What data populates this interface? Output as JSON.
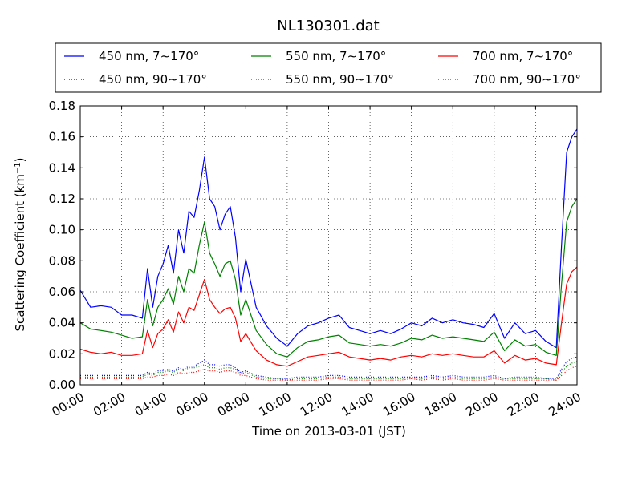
{
  "chart_data": {
    "type": "line",
    "title": "NL130301.dat",
    "xlabel": "Time on 2013-03-01 (JST)",
    "ylabel": "Scattering Coefficient (km",
    "ylabel_exponent": "−1",
    "ylabel_suffix": ")",
    "xlim": [
      0,
      24
    ],
    "ylim": [
      0,
      0.18
    ],
    "grid": true,
    "legend": "top-outside",
    "x_ticks": [
      0,
      2,
      4,
      6,
      8,
      10,
      12,
      14,
      16,
      18,
      20,
      22,
      24
    ],
    "x_tick_labels": [
      "00:00",
      "02:00",
      "04:00",
      "06:00",
      "08:00",
      "10:00",
      "12:00",
      "14:00",
      "16:00",
      "18:00",
      "20:00",
      "22:00",
      "24:00"
    ],
    "y_ticks": [
      0,
      0.02,
      0.04,
      0.06,
      0.08,
      0.1,
      0.12,
      0.14,
      0.16,
      0.18
    ],
    "y_tick_labels": [
      "0.00",
      "0.02",
      "0.04",
      "0.06",
      "0.08",
      "0.10",
      "0.12",
      "0.14",
      "0.16",
      "0.18"
    ],
    "x": [
      0,
      0.5,
      1,
      1.5,
      2,
      2.5,
      3,
      3.25,
      3.5,
      3.75,
      4,
      4.25,
      4.5,
      4.75,
      5,
      5.25,
      5.5,
      5.75,
      6,
      6.25,
      6.5,
      6.75,
      7,
      7.25,
      7.5,
      7.75,
      8,
      8.5,
      9,
      9.5,
      10,
      10.5,
      11,
      11.5,
      12,
      12.5,
      13,
      13.5,
      14,
      14.5,
      15,
      15.5,
      16,
      16.5,
      17,
      17.5,
      18,
      18.5,
      19,
      19.5,
      20,
      20.5,
      21,
      21.5,
      22,
      22.5,
      23,
      23.25,
      23.5,
      23.75,
      24
    ],
    "series": [
      {
        "name": "450 nm, 7∼170°",
        "color": "#0000ff",
        "dash": "solid",
        "values": [
          0.061,
          0.05,
          0.051,
          0.05,
          0.045,
          0.045,
          0.043,
          0.075,
          0.05,
          0.07,
          0.078,
          0.09,
          0.072,
          0.1,
          0.085,
          0.112,
          0.108,
          0.125,
          0.147,
          0.12,
          0.115,
          0.1,
          0.11,
          0.115,
          0.095,
          0.06,
          0.081,
          0.05,
          0.038,
          0.03,
          0.025,
          0.033,
          0.038,
          0.04,
          0.043,
          0.045,
          0.037,
          0.035,
          0.033,
          0.035,
          0.033,
          0.036,
          0.04,
          0.038,
          0.043,
          0.04,
          0.042,
          0.04,
          0.039,
          0.037,
          0.046,
          0.03,
          0.04,
          0.033,
          0.035,
          0.028,
          0.024,
          0.09,
          0.15,
          0.16,
          0.165
        ]
      },
      {
        "name": "550 nm, 7∼170°",
        "color": "#008000",
        "dash": "solid",
        "values": [
          0.04,
          0.036,
          0.035,
          0.034,
          0.032,
          0.03,
          0.031,
          0.055,
          0.038,
          0.05,
          0.055,
          0.062,
          0.052,
          0.07,
          0.06,
          0.075,
          0.072,
          0.09,
          0.105,
          0.085,
          0.078,
          0.07,
          0.078,
          0.08,
          0.068,
          0.045,
          0.055,
          0.035,
          0.026,
          0.02,
          0.018,
          0.024,
          0.028,
          0.029,
          0.031,
          0.032,
          0.027,
          0.026,
          0.025,
          0.026,
          0.025,
          0.027,
          0.03,
          0.029,
          0.032,
          0.03,
          0.031,
          0.03,
          0.029,
          0.028,
          0.034,
          0.022,
          0.029,
          0.025,
          0.026,
          0.021,
          0.019,
          0.065,
          0.105,
          0.115,
          0.12
        ]
      },
      {
        "name": "700 nm, 7∼170°",
        "color": "#ff0000",
        "dash": "solid",
        "values": [
          0.023,
          0.021,
          0.02,
          0.021,
          0.019,
          0.019,
          0.02,
          0.035,
          0.024,
          0.033,
          0.036,
          0.042,
          0.034,
          0.047,
          0.04,
          0.05,
          0.048,
          0.058,
          0.068,
          0.055,
          0.05,
          0.046,
          0.049,
          0.05,
          0.043,
          0.028,
          0.033,
          0.022,
          0.016,
          0.013,
          0.012,
          0.015,
          0.018,
          0.019,
          0.02,
          0.021,
          0.018,
          0.017,
          0.016,
          0.017,
          0.016,
          0.018,
          0.019,
          0.018,
          0.02,
          0.019,
          0.02,
          0.019,
          0.018,
          0.018,
          0.022,
          0.014,
          0.019,
          0.016,
          0.017,
          0.014,
          0.013,
          0.04,
          0.065,
          0.073,
          0.076
        ]
      },
      {
        "name": "450 nm, 90∼170°",
        "color": "#0000ff",
        "dash": "dotted",
        "values": [
          0.006,
          0.006,
          0.006,
          0.006,
          0.006,
          0.006,
          0.006,
          0.008,
          0.007,
          0.009,
          0.009,
          0.01,
          0.009,
          0.011,
          0.01,
          0.012,
          0.012,
          0.014,
          0.016,
          0.013,
          0.013,
          0.012,
          0.013,
          0.013,
          0.011,
          0.008,
          0.009,
          0.006,
          0.005,
          0.004,
          0.004,
          0.005,
          0.005,
          0.005,
          0.006,
          0.006,
          0.005,
          0.005,
          0.005,
          0.005,
          0.005,
          0.005,
          0.005,
          0.005,
          0.006,
          0.005,
          0.006,
          0.005,
          0.005,
          0.005,
          0.006,
          0.004,
          0.005,
          0.005,
          0.005,
          0.004,
          0.004,
          0.01,
          0.015,
          0.017,
          0.018
        ]
      },
      {
        "name": "550 nm, 90∼170°",
        "color": "#008000",
        "dash": "dotted",
        "values": [
          0.005,
          0.005,
          0.005,
          0.005,
          0.005,
          0.005,
          0.005,
          0.007,
          0.006,
          0.008,
          0.008,
          0.009,
          0.008,
          0.01,
          0.009,
          0.011,
          0.011,
          0.012,
          0.013,
          0.011,
          0.011,
          0.01,
          0.011,
          0.011,
          0.01,
          0.007,
          0.008,
          0.005,
          0.004,
          0.004,
          0.003,
          0.004,
          0.004,
          0.004,
          0.005,
          0.005,
          0.004,
          0.004,
          0.004,
          0.004,
          0.004,
          0.004,
          0.005,
          0.004,
          0.005,
          0.004,
          0.005,
          0.004,
          0.004,
          0.004,
          0.005,
          0.004,
          0.004,
          0.004,
          0.004,
          0.004,
          0.003,
          0.008,
          0.012,
          0.014,
          0.015
        ]
      },
      {
        "name": "700 nm, 90∼170°",
        "color": "#ff0000",
        "dash": "dotted",
        "values": [
          0.004,
          0.004,
          0.004,
          0.004,
          0.004,
          0.004,
          0.004,
          0.005,
          0.005,
          0.006,
          0.006,
          0.007,
          0.006,
          0.008,
          0.007,
          0.008,
          0.008,
          0.009,
          0.01,
          0.009,
          0.009,
          0.008,
          0.009,
          0.009,
          0.008,
          0.006,
          0.006,
          0.004,
          0.003,
          0.003,
          0.003,
          0.003,
          0.003,
          0.003,
          0.004,
          0.004,
          0.003,
          0.003,
          0.003,
          0.003,
          0.003,
          0.003,
          0.004,
          0.003,
          0.004,
          0.003,
          0.004,
          0.003,
          0.003,
          0.003,
          0.004,
          0.003,
          0.003,
          0.003,
          0.003,
          0.003,
          0.003,
          0.006,
          0.009,
          0.011,
          0.012
        ]
      }
    ]
  }
}
